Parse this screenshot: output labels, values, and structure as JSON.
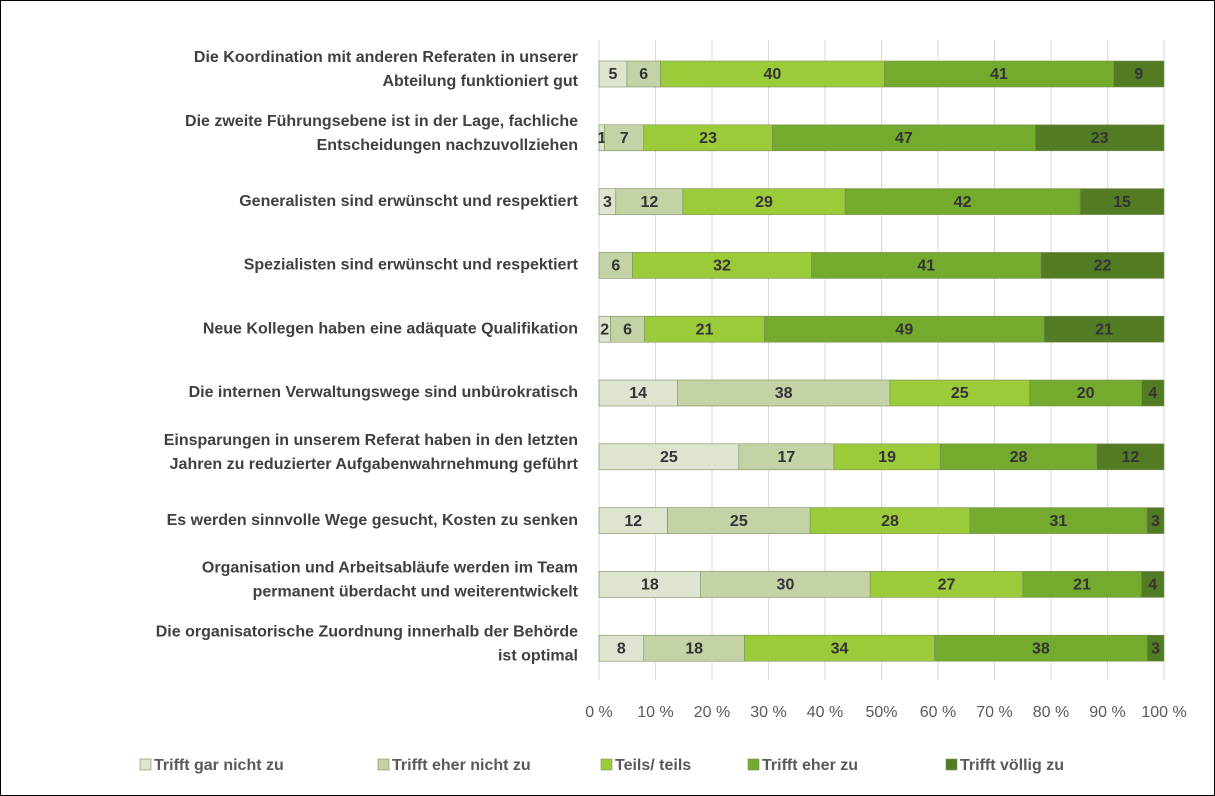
{
  "chart_data": {
    "type": "stacked-bar-100",
    "orientation": "horizontal",
    "categories": [
      [
        "Die Koordination mit anderen Referaten in unserer",
        "Abteilung funktioniert gut"
      ],
      [
        "Die zweite Führungsebene ist in der Lage, fachliche",
        "Entscheidungen nachzuvollziehen"
      ],
      [
        "Generalisten sind erwünscht und respektiert"
      ],
      [
        "Spezialisten sind erwünscht und respektiert"
      ],
      [
        "Neue Kollegen haben eine adäquate Qualifikation"
      ],
      [
        "Die internen Verwaltungswege sind unbürokratisch"
      ],
      [
        "Einsparungen in unserem Referat haben in den letzten",
        "Jahren zu reduzierter Aufgabenwahrnehmung geführt"
      ],
      [
        "Es werden sinnvolle Wege gesucht, Kosten zu senken"
      ],
      [
        "Organisation und Arbeitsabläufe werden im Team",
        "permanent überdacht und weiterentwickelt"
      ],
      [
        "Die organisatorische Zuordnung innerhalb der Behörde",
        "ist optimal"
      ]
    ],
    "series": [
      {
        "name": "Trifft gar nicht zu",
        "color": "#dde4cf",
        "values": [
          5,
          1,
          3,
          null,
          2,
          14,
          25,
          12,
          18,
          8
        ]
      },
      {
        "name": "Trifft eher nicht zu",
        "color": "#c3d3a6",
        "values": [
          6,
          7,
          12,
          6,
          6,
          38,
          17,
          25,
          30,
          18
        ]
      },
      {
        "name": "Teils/ teils",
        "color": "#9ccb3a",
        "values": [
          40,
          23,
          29,
          32,
          21,
          25,
          19,
          28,
          27,
          34
        ]
      },
      {
        "name": "Trifft eher zu",
        "color": "#74aa2e",
        "values": [
          41,
          47,
          42,
          41,
          49,
          20,
          28,
          31,
          21,
          38
        ]
      },
      {
        "name": "Trifft völlig zu",
        "color": "#527b24",
        "values": [
          9,
          23,
          15,
          22,
          21,
          4,
          12,
          3,
          4,
          3
        ]
      }
    ],
    "xlim": [
      0,
      100
    ],
    "xticks": [
      {
        "value": 0,
        "label": "0 %"
      },
      {
        "value": 10,
        "label": "10 %"
      },
      {
        "value": 20,
        "label": "20 %"
      },
      {
        "value": 30,
        "label": "30 %"
      },
      {
        "value": 40,
        "label": "40 %"
      },
      {
        "value": 50,
        "label": "50%"
      },
      {
        "value": 60,
        "label": "60 %"
      },
      {
        "value": 70,
        "label": "70 %"
      },
      {
        "value": 80,
        "label": "80 %"
      },
      {
        "value": 90,
        "label": "90 %"
      },
      {
        "value": 100,
        "label": "100 %"
      }
    ],
    "grid": true,
    "legend": "bottom"
  }
}
